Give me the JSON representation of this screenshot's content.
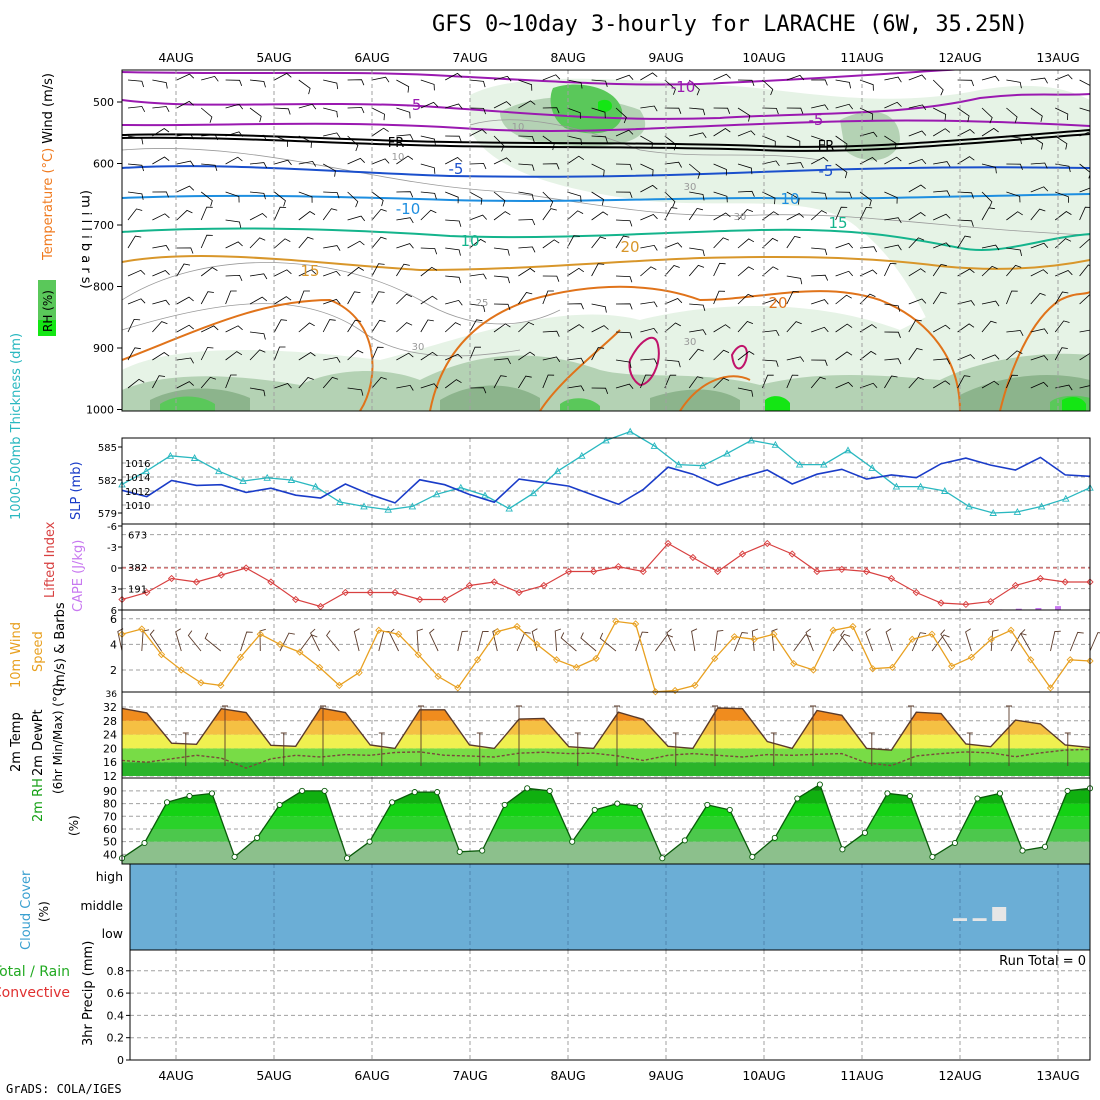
{
  "title": "GFS 0~10day 3-hourly for LARACHE (6W, 35.25N)",
  "credit": "GrADS: COLA/IGES",
  "dates": [
    "4AUG",
    "5AUG",
    "6AUG",
    "7AUG",
    "8AUG",
    "9AUG",
    "10AUG",
    "11AUG",
    "12AUG",
    "13AUG"
  ],
  "colors": {
    "rh_light": "#e6f3e6",
    "rh_mid": "#b4d2b4",
    "rh_dark": "#8cb48c",
    "rh_green": "#5ac85a",
    "rh_bright": "#14e614",
    "cloud_bg": "#6baed6",
    "cloud_bar": "#e6e6e6"
  },
  "panels": {
    "upper": {
      "labels": {
        "rh": "RH (%)",
        "temp": "Temperature (°C)",
        "wind": "Wind (m/s)",
        "mb": "(m i l l i b a r s)"
      },
      "yticks": [
        "500",
        "600",
        "700",
        "800",
        "900",
        "1000"
      ],
      "contour_labels": [
        "-10",
        "-5",
        "-5",
        "FR",
        "FR",
        "-5",
        "-5",
        "-10",
        "10",
        "10",
        "15",
        "15",
        "20",
        "20",
        "25",
        "10",
        "10",
        "30",
        "30",
        "30",
        "30"
      ]
    },
    "slp": {
      "labels": {
        "thick": "1000-500mb Thickness (dm)",
        "slp": "SLP (mb)"
      },
      "left_ticks": [
        "585",
        "582",
        "579"
      ],
      "right_ticks": [
        "1016",
        "1014",
        "1012",
        "1010"
      ]
    },
    "cape": {
      "labels": {
        "li": "Lifted Index",
        "cape": "CAPE (J/kg)"
      },
      "li_ticks": [
        "-6",
        "-3",
        "0",
        "3",
        "6"
      ],
      "cape_ticks": [
        "673",
        "382",
        "191"
      ]
    },
    "wind": {
      "labels": {
        "a": "10m Wind",
        "b": "Speed",
        "c": "(m/s) & Barbs"
      },
      "ticks": [
        "6",
        "4",
        "2"
      ]
    },
    "temp": {
      "labels": {
        "a": "2m Temp",
        "b": "2m DewPt",
        "c": "(6hr Min/Max) (°C)"
      },
      "ticks": [
        "32",
        "28",
        "24",
        "20",
        "16",
        "12"
      ],
      "top_tick": "36"
    },
    "rh": {
      "labels": {
        "a": "2m RH",
        "b": "(%)"
      },
      "ticks": [
        "90",
        "80",
        "70",
        "60",
        "50",
        "40"
      ]
    },
    "cloud": {
      "labels": {
        "a": "Cloud Cover",
        "b": "(%)"
      },
      "ticks": [
        "high",
        "middle",
        "low"
      ]
    },
    "precip": {
      "labels": {
        "a": "Total / Rain",
        "b": "Convective",
        "c": "3hr Precip (mm)"
      },
      "ticks": [
        "0.8",
        "0.6",
        "0.4",
        "0.2",
        "0"
      ],
      "run_total": "Run Total = 0"
    }
  },
  "chart_data": [
    {
      "type": "line",
      "panel": "slp",
      "series": [
        {
          "name": "Thickness",
          "units": "dm",
          "values": [
            581.6,
            582.8,
            584.2,
            584.0,
            582.8,
            581.9,
            582.2,
            582.0,
            581.4,
            580.0,
            579.6,
            579.3,
            579.6,
            580.7,
            581.3,
            580.6,
            579.4,
            580.8,
            582.8,
            584.2,
            585.6,
            586.4,
            585.1,
            583.4,
            583.3,
            584.4,
            585.6,
            585.2,
            583.4,
            583.4,
            584.7,
            583.1,
            581.4,
            581.4,
            581.0,
            579.6,
            579.0,
            579.1,
            579.6,
            580.3,
            581.3
          ]
        },
        {
          "name": "SLP",
          "units": "mb",
          "values": [
            1012.1,
            1011.2,
            1013.5,
            1012.8,
            1012.9,
            1011.8,
            1012.4,
            1011.4,
            1011.0,
            1013.0,
            1011.5,
            1010.3,
            1013.6,
            1012.9,
            1011.5,
            1010.4,
            1013.7,
            1013.2,
            1012.7,
            1011.4,
            1010.1,
            1012.2,
            1015.4,
            1014.4,
            1012.8,
            1014.0,
            1015.0,
            1013.0,
            1014.4,
            1015.1,
            1013.7,
            1014.3,
            1013.9,
            1015.9,
            1016.7,
            1015.7,
            1015.0,
            1016.8,
            1014.3,
            1014.1
          ]
        }
      ]
    },
    {
      "type": "bar",
      "panel": "cape",
      "series": [
        {
          "name": "Lifted Index",
          "values": [
            4.5,
            3.5,
            1.5,
            2.0,
            1.0,
            0.0,
            2.0,
            4.5,
            5.5,
            3.5,
            3.5,
            3.5,
            4.5,
            4.5,
            2.5,
            2.0,
            3.5,
            2.5,
            0.5,
            0.5,
            -0.2,
            0.5,
            -3.5,
            -1.5,
            0.5,
            -2.0,
            -3.5,
            -2.0,
            0.5,
            0.2,
            0.5,
            1.5,
            3.5,
            5.0,
            5.2,
            4.8,
            2.5,
            1.5,
            2.0,
            2.0
          ]
        },
        {
          "name": "CAPE",
          "units": "J/kg",
          "x": [
            9.9,
            10.0,
            10.1,
            10.2,
            10.3,
            10.4,
            10.5,
            10.6,
            10.7,
            10.8,
            10.9,
            11.0,
            11.1,
            11.2,
            11.3,
            11.4
          ],
          "values": [
            15,
            40,
            60,
            170,
            430,
            760,
            700,
            580,
            460,
            360,
            250,
            380,
            520,
            580,
            400,
            260
          ]
        }
      ]
    },
    {
      "type": "line",
      "panel": "wind",
      "name": "10m Wind Speed",
      "units": "m/s",
      "values": [
        4.8,
        5.2,
        3.2,
        2.0,
        1.0,
        0.8,
        3.0,
        4.8,
        4.0,
        3.4,
        2.2,
        0.8,
        1.8,
        5.1,
        4.8,
        3.2,
        1.5,
        0.6,
        2.8,
        5.0,
        5.4,
        4.0,
        2.8,
        2.2,
        2.9,
        5.8,
        5.6,
        0.3,
        0.4,
        0.8,
        2.9,
        4.6,
        4.4,
        4.8,
        2.5,
        2.0,
        5.1,
        5.4,
        2.1,
        2.2,
        4.4,
        4.8,
        2.3,
        3.0,
        4.4,
        5.1,
        2.8,
        0.6,
        2.8,
        2.7
      ]
    },
    {
      "type": "area",
      "panel": "temp",
      "name": "2m Temp",
      "units": "°C",
      "values": [
        31.6,
        30.3,
        21.5,
        21.2,
        31.5,
        30.4,
        20.9,
        20.6,
        31.7,
        30.4,
        21.0,
        20.0,
        31.2,
        31.2,
        21.0,
        20.0,
        28.5,
        28.7,
        20.5,
        20.0,
        30.5,
        28.4,
        20.6,
        20.0,
        31.7,
        31.5,
        22.0,
        20.0,
        31.0,
        29.6,
        20.0,
        19.5,
        30.5,
        30.1,
        21.3,
        20.5,
        28.2,
        27.1,
        21.0,
        20.3
      ],
      "dewpoint": [
        16.5,
        16.0,
        17.0,
        18.0,
        17.2,
        14.3,
        17.0,
        18.0,
        17.5,
        18.2,
        18.0,
        18.8,
        19.0,
        18.0,
        17.8,
        17.5,
        18.6,
        18.9,
        18.5,
        18.6,
        17.8,
        16.5,
        18.0,
        18.5,
        18.0,
        17.5,
        18.2,
        18.0,
        18.3,
        18.5,
        15.8,
        15.0,
        17.8,
        18.5,
        19.0,
        18.7,
        17.6,
        18.7,
        19.5,
        19.7
      ]
    },
    {
      "type": "area",
      "panel": "rh",
      "name": "2m RH",
      "units": "%",
      "values": [
        37,
        49,
        81,
        86,
        88,
        38,
        53,
        79,
        90,
        90,
        37,
        50,
        81,
        89,
        89,
        42,
        43,
        79,
        92,
        90,
        50,
        75,
        80,
        78,
        37,
        51,
        79,
        75,
        38,
        53,
        84,
        95,
        44,
        57,
        88,
        86,
        38,
        49,
        84,
        88,
        43,
        46,
        90,
        92
      ]
    },
    {
      "type": "bar",
      "panel": "cloud",
      "name": "Cloud Cover",
      "series": [
        {
          "name": "high",
          "x": [
            10.9,
            12.9
          ],
          "values": [
            10,
            10
          ]
        },
        {
          "name": "middle",
          "x": [
            8.0,
            8.2,
            8.4
          ],
          "values": [
            10,
            10,
            50
          ]
        },
        {
          "name": "low",
          "x": [
            9.6,
            9.8,
            10.1,
            10.3,
            10.5,
            10.7,
            10.9,
            13.1
          ],
          "values": [
            3,
            3,
            40,
            60,
            8,
            5,
            5,
            5
          ]
        }
      ]
    },
    {
      "type": "bar",
      "panel": "precip",
      "name": "3hr Precip",
      "units": "mm",
      "values": [],
      "ylim": [
        0,
        0.9
      ]
    }
  ]
}
